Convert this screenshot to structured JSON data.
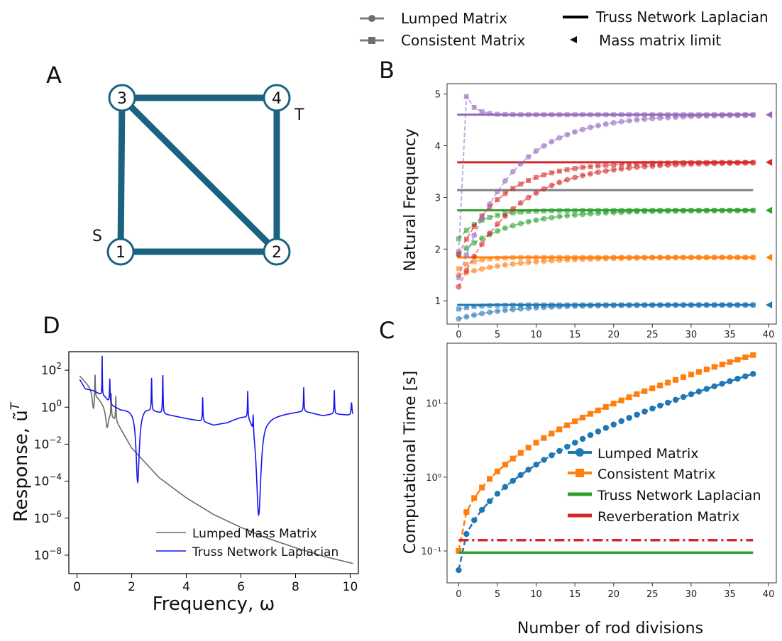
{
  "top_legend": [
    {
      "label": "Lumped Matrix",
      "marker": "circle",
      "line": "solid"
    },
    {
      "label": "Consistent Matrix",
      "marker": "square",
      "line": "solid"
    },
    {
      "label": "Truss Network Laplacian",
      "marker": "none",
      "line": "thick"
    },
    {
      "label": "Mass matrix limit",
      "marker": "triangle-left",
      "line": "none"
    }
  ],
  "panel_labels": {
    "a": "A",
    "b": "B",
    "c": "C",
    "d": "D"
  },
  "shared_xlabel": "Number of rod divisions",
  "colors": {
    "edge": "#1b6280",
    "blue": "#1f77b4",
    "orange": "#ff7f0e",
    "green": "#2ca02c",
    "red": "#d62728",
    "purple": "#9467bd",
    "gray": "#7f7f7f",
    "gray_dark": "#6b6b6b",
    "laplacian_d": "#1515ee"
  },
  "chart_data": [
    {
      "id": "A",
      "type": "graph",
      "nodes": [
        {
          "id": 1,
          "label": "1"
        },
        {
          "id": 2,
          "label": "2"
        },
        {
          "id": 3,
          "label": "3"
        },
        {
          "id": 4,
          "label": "4"
        }
      ],
      "edges": [
        [
          1,
          2
        ],
        [
          1,
          3
        ],
        [
          3,
          4
        ],
        [
          4,
          2
        ],
        [
          3,
          2
        ]
      ],
      "source": {
        "node": 1,
        "label": "S"
      },
      "target": {
        "node": 4,
        "label": "T"
      }
    },
    {
      "id": "B",
      "type": "line",
      "ylabel": "Natural Frequency",
      "xlim": [
        -1.5,
        41
      ],
      "ylim": [
        0.55,
        5.2
      ],
      "xticks": [
        0,
        5,
        10,
        15,
        20,
        25,
        30,
        35,
        40
      ],
      "yticks": [
        1,
        2,
        3,
        4,
        5
      ],
      "x_end": 38,
      "modes": [
        {
          "color": "blue",
          "limit": 0.92,
          "lumped_start": 0.65,
          "lumped_rate": 0.16,
          "consistent_start": 0.84,
          "consistent_rate": 0.45,
          "consistent_peak": 0
        },
        {
          "color": "orange",
          "limit": 1.84,
          "lumped_start": 1.5,
          "lumped_rate": 0.14,
          "consistent_start": 1.62,
          "consistent_rate": 0.5,
          "consistent_peak": 0
        },
        {
          "color": "green",
          "limit": 2.75,
          "lumped_start": 1.9,
          "lumped_rate": 0.15,
          "consistent_start": 2.2,
          "consistent_rate": 0.35,
          "consistent_peak": 0
        },
        {
          "color": "red",
          "limit": 3.68,
          "lumped_start": 1.27,
          "lumped_rate": 0.14,
          "consistent_start": 1.9,
          "consistent_rate": 0.18,
          "consistent_peak": 0
        },
        {
          "color": "purple",
          "limit": 4.6,
          "lumped_start": 1.45,
          "lumped_rate": 0.15,
          "consistent_start": 1.95,
          "consistent_rate": 0.9,
          "consistent_peak": 4.95
        }
      ],
      "gray_line": 3.14,
      "triangle_x": 40
    },
    {
      "id": "C",
      "type": "line",
      "ylabel": "Computational Time [s]",
      "yscale": "log",
      "xlim": [
        -1.5,
        41
      ],
      "ylim": [
        0.037,
        65
      ],
      "xticks": [
        0,
        5,
        10,
        15,
        20,
        25,
        30,
        35,
        40
      ],
      "yticks": [
        {
          "value": 10,
          "label": "10¹"
        },
        {
          "value": 1,
          "label": "10⁰"
        },
        {
          "value": 0.1,
          "label": "10⁻¹"
        }
      ],
      "series": [
        {
          "name": "Lumped Matrix",
          "color": "blue",
          "marker": "circle",
          "style": "dashed",
          "start": 0.055,
          "end": 25,
          "exponent": 2.15
        },
        {
          "name": "Consistent Matrix",
          "color": "orange",
          "marker": "square",
          "style": "dashed",
          "start": 0.1,
          "end": 45,
          "exponent": 2.25
        },
        {
          "name": "Truss Network Laplacian",
          "color": "green",
          "marker": "none",
          "style": "solid",
          "value": 0.095
        },
        {
          "name": "Reverberation Matrix",
          "color": "red",
          "marker": "none",
          "style": "dashdot",
          "value": 0.14
        }
      ]
    },
    {
      "id": "D",
      "type": "line",
      "yscale": "log",
      "xlabel": "Frequency, ω",
      "ylabel": "Response, ũ",
      "ylabel_sup": "T",
      "xlim": [
        -0.3,
        10.3
      ],
      "ylim_exp": [
        -9,
        3
      ],
      "xticks": [
        0,
        2,
        4,
        6,
        8,
        10
      ],
      "yticks": [
        {
          "exp": 2,
          "base": "10",
          "sup": "2"
        },
        {
          "exp": 0,
          "base": "10",
          "sup": "0"
        },
        {
          "exp": -2,
          "base": "10",
          "sup": "−2"
        },
        {
          "exp": -4,
          "base": "10",
          "sup": "−4"
        },
        {
          "exp": -6,
          "base": "10",
          "sup": "−6"
        },
        {
          "exp": -8,
          "base": "10",
          "sup": "−8"
        }
      ],
      "series": [
        {
          "name": "Lumped Mass Matrix",
          "color": "gray_dark",
          "range": [
            0.1,
            10.1
          ],
          "base": [
            [
              0.1,
              1.7
            ],
            [
              0.55,
              1.0
            ],
            [
              1.0,
              0.1
            ],
            [
              1.5,
              -0.9
            ],
            [
              2.0,
              -2.2
            ],
            [
              3.0,
              -3.8
            ],
            [
              4.0,
              -4.9
            ],
            [
              5.0,
              -5.8
            ],
            [
              6.0,
              -6.5
            ],
            [
              7.0,
              -7.1
            ],
            [
              8.0,
              -7.6
            ],
            [
              9.0,
              -8.05
            ],
            [
              10.1,
              -8.45
            ]
          ],
          "peaks": [
            {
              "x": 0.66,
              "h": 1.5,
              "w": 0.012
            },
            {
              "x": 1.25,
              "h": 1.3,
              "w": 0.012
            },
            {
              "x": 1.42,
              "h": 1.4,
              "w": 0.012
            }
          ],
          "dips": [
            {
              "x": 0.6,
              "d": 1.0,
              "w": 0.05
            },
            {
              "x": 1.1,
              "d": 1.0,
              "w": 0.06
            }
          ]
        },
        {
          "name": "Truss Network Laplacian",
          "color": "laplacian_d",
          "range": [
            0.1,
            10.1
          ],
          "base": [
            [
              0.1,
              1.5
            ],
            [
              0.3,
              1.0
            ],
            [
              0.6,
              0.9
            ],
            [
              1.0,
              0.6
            ],
            [
              1.3,
              0.1
            ],
            [
              1.6,
              -0.1
            ],
            [
              2.0,
              -0.1
            ],
            [
              2.5,
              0.0
            ],
            [
              3.2,
              -0.35
            ],
            [
              4.0,
              -0.6
            ],
            [
              4.6,
              -0.75
            ],
            [
              5.0,
              -0.95
            ],
            [
              5.5,
              -0.8
            ],
            [
              6.2,
              -0.3
            ],
            [
              6.6,
              -0.3
            ],
            [
              7.0,
              -0.5
            ],
            [
              7.6,
              -0.35
            ],
            [
              8.3,
              -0.2
            ],
            [
              9.0,
              -0.45
            ],
            [
              9.4,
              -0.35
            ],
            [
              10.1,
              -0.45
            ]
          ],
          "peaks": [
            {
              "x": 0.92,
              "h": 2.2,
              "w": 0.008
            },
            {
              "x": 1.2,
              "h": 1.3,
              "w": 0.012
            },
            {
              "x": 2.73,
              "h": 1.8,
              "w": 0.012
            },
            {
              "x": 3.14,
              "h": 2.2,
              "w": 0.012
            },
            {
              "x": 4.6,
              "h": 1.3,
              "w": 0.012
            },
            {
              "x": 6.25,
              "h": 1.5,
              "w": 0.012
            },
            {
              "x": 6.45,
              "h": 1.0,
              "w": 0.012
            },
            {
              "x": 8.3,
              "h": 1.3,
              "w": 0.012
            },
            {
              "x": 9.42,
              "h": 1.3,
              "w": 0.012
            },
            {
              "x": 10.05,
              "h": 0.7,
              "w": 0.02
            }
          ],
          "dips": [
            {
              "x": 2.22,
              "d": 4.0,
              "w": 0.07
            },
            {
              "x": 6.65,
              "d": 5.5,
              "w": 0.1
            }
          ]
        }
      ]
    }
  ]
}
